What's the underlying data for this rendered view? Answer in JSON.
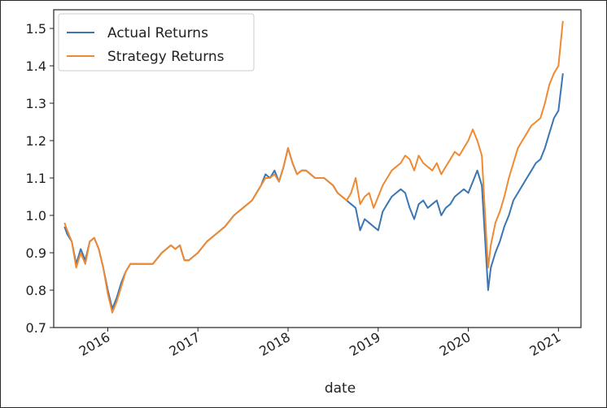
{
  "chart_data": {
    "type": "line",
    "title": "",
    "xlabel": "date",
    "ylabel": "",
    "xlim": [
      2015.4,
      2021.25
    ],
    "ylim": [
      0.7,
      1.55
    ],
    "x_ticks": [
      2016,
      2017,
      2018,
      2019,
      2020,
      2021
    ],
    "x_tick_labels": [
      "2016",
      "2017",
      "2018",
      "2019",
      "2020",
      "2021"
    ],
    "y_ticks": [
      0.7,
      0.8,
      0.9,
      1.0,
      1.1,
      1.2,
      1.3,
      1.4,
      1.5
    ],
    "y_tick_labels": [
      "0.7",
      "0.8",
      "0.9",
      "1.0",
      "1.1",
      "1.2",
      "1.3",
      "1.4",
      "1.5"
    ],
    "grid": false,
    "legend": {
      "position": "top-left",
      "entries": [
        "Actual Returns",
        "Strategy Returns"
      ]
    },
    "series": [
      {
        "name": "Actual Returns",
        "color": "#3b76b3",
        "x": [
          2015.52,
          2015.55,
          2015.6,
          2015.65,
          2015.7,
          2015.75,
          2015.8,
          2015.85,
          2015.9,
          2015.95,
          2016.0,
          2016.05,
          2016.1,
          2016.15,
          2016.2,
          2016.25,
          2016.3,
          2016.4,
          2016.5,
          2016.6,
          2016.7,
          2016.75,
          2016.8,
          2016.85,
          2016.9,
          2016.95,
          2017.0,
          2017.1,
          2017.2,
          2017.3,
          2017.4,
          2017.5,
          2017.6,
          2017.7,
          2017.75,
          2017.8,
          2017.85,
          2017.9,
          2017.95,
          2018.0,
          2018.05,
          2018.1,
          2018.15,
          2018.2,
          2018.3,
          2018.4,
          2018.5,
          2018.55,
          2018.6,
          2018.65,
          2018.7,
          2018.75,
          2018.8,
          2018.85,
          2018.9,
          2018.95,
          2019.0,
          2019.05,
          2019.1,
          2019.15,
          2019.2,
          2019.25,
          2019.3,
          2019.35,
          2019.4,
          2019.45,
          2019.5,
          2019.55,
          2019.6,
          2019.65,
          2019.7,
          2019.75,
          2019.8,
          2019.85,
          2019.9,
          2019.95,
          2020.0,
          2020.05,
          2020.1,
          2020.15,
          2020.2,
          2020.22,
          2020.25,
          2020.3,
          2020.35,
          2020.4,
          2020.45,
          2020.5,
          2020.55,
          2020.6,
          2020.65,
          2020.7,
          2020.75,
          2020.8,
          2020.85,
          2020.9,
          2020.95,
          2021.0,
          2021.05
        ],
        "values": [
          0.97,
          0.95,
          0.93,
          0.87,
          0.91,
          0.88,
          0.93,
          0.94,
          0.91,
          0.86,
          0.8,
          0.75,
          0.78,
          0.82,
          0.85,
          0.87,
          0.87,
          0.87,
          0.87,
          0.9,
          0.92,
          0.91,
          0.92,
          0.88,
          0.88,
          0.89,
          0.9,
          0.93,
          0.95,
          0.97,
          1.0,
          1.02,
          1.04,
          1.08,
          1.11,
          1.1,
          1.12,
          1.09,
          1.13,
          1.18,
          1.14,
          1.11,
          1.12,
          1.12,
          1.1,
          1.1,
          1.08,
          1.06,
          1.05,
          1.04,
          1.03,
          1.02,
          0.96,
          0.99,
          0.98,
          0.97,
          0.96,
          1.01,
          1.03,
          1.05,
          1.06,
          1.07,
          1.06,
          1.02,
          0.99,
          1.03,
          1.04,
          1.02,
          1.03,
          1.04,
          1.0,
          1.02,
          1.03,
          1.05,
          1.06,
          1.07,
          1.06,
          1.09,
          1.12,
          1.08,
          0.88,
          0.8,
          0.86,
          0.9,
          0.93,
          0.97,
          1.0,
          1.04,
          1.06,
          1.08,
          1.1,
          1.12,
          1.14,
          1.15,
          1.18,
          1.22,
          1.26,
          1.28,
          1.38
        ]
      },
      {
        "name": "Strategy Returns",
        "color": "#ef8a33",
        "x": [
          2015.52,
          2015.55,
          2015.6,
          2015.65,
          2015.7,
          2015.75,
          2015.8,
          2015.85,
          2015.9,
          2015.95,
          2016.0,
          2016.05,
          2016.1,
          2016.15,
          2016.2,
          2016.25,
          2016.3,
          2016.4,
          2016.5,
          2016.6,
          2016.7,
          2016.75,
          2016.8,
          2016.85,
          2016.9,
          2016.95,
          2017.0,
          2017.1,
          2017.2,
          2017.3,
          2017.4,
          2017.5,
          2017.6,
          2017.7,
          2017.75,
          2017.8,
          2017.85,
          2017.9,
          2017.95,
          2018.0,
          2018.05,
          2018.1,
          2018.15,
          2018.2,
          2018.3,
          2018.4,
          2018.5,
          2018.55,
          2018.6,
          2018.65,
          2018.7,
          2018.75,
          2018.8,
          2018.85,
          2018.9,
          2018.95,
          2019.0,
          2019.05,
          2019.1,
          2019.15,
          2019.2,
          2019.25,
          2019.3,
          2019.35,
          2019.4,
          2019.45,
          2019.5,
          2019.55,
          2019.6,
          2019.65,
          2019.7,
          2019.75,
          2019.8,
          2019.85,
          2019.9,
          2019.95,
          2020.0,
          2020.05,
          2020.1,
          2020.15,
          2020.2,
          2020.22,
          2020.25,
          2020.3,
          2020.35,
          2020.4,
          2020.45,
          2020.5,
          2020.55,
          2020.6,
          2020.65,
          2020.7,
          2020.75,
          2020.8,
          2020.85,
          2020.9,
          2020.95,
          2021.0,
          2021.05
        ],
        "values": [
          0.98,
          0.96,
          0.93,
          0.86,
          0.9,
          0.87,
          0.93,
          0.94,
          0.91,
          0.86,
          0.79,
          0.74,
          0.77,
          0.81,
          0.85,
          0.87,
          0.87,
          0.87,
          0.87,
          0.9,
          0.92,
          0.91,
          0.92,
          0.88,
          0.88,
          0.89,
          0.9,
          0.93,
          0.95,
          0.97,
          1.0,
          1.02,
          1.04,
          1.08,
          1.1,
          1.1,
          1.11,
          1.09,
          1.13,
          1.18,
          1.14,
          1.11,
          1.12,
          1.12,
          1.1,
          1.1,
          1.08,
          1.06,
          1.05,
          1.04,
          1.06,
          1.1,
          1.03,
          1.05,
          1.06,
          1.02,
          1.05,
          1.08,
          1.1,
          1.12,
          1.13,
          1.14,
          1.16,
          1.15,
          1.12,
          1.16,
          1.14,
          1.13,
          1.12,
          1.14,
          1.11,
          1.13,
          1.15,
          1.17,
          1.16,
          1.18,
          1.2,
          1.23,
          1.2,
          1.16,
          0.94,
          0.86,
          0.92,
          0.98,
          1.01,
          1.05,
          1.1,
          1.14,
          1.18,
          1.2,
          1.22,
          1.24,
          1.25,
          1.26,
          1.3,
          1.35,
          1.38,
          1.4,
          1.52
        ]
      }
    ]
  }
}
